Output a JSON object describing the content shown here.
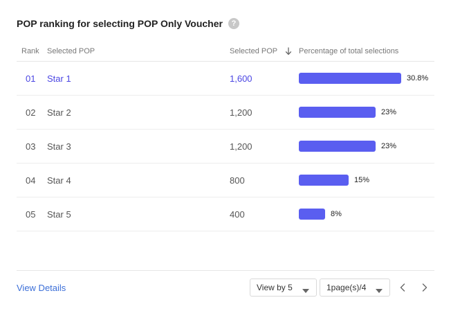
{
  "header": {
    "title": "POP ranking for selecting POP Only Voucher",
    "help_glyph": "?"
  },
  "table": {
    "columns": {
      "rank": "Rank",
      "pop": "Selected POP",
      "selected": "Selected POP",
      "percentage": "Percentage of total selections"
    },
    "sort_icon": "arrow-down-icon",
    "rows": [
      {
        "rank": "01",
        "name": "Star 1",
        "selected": "1,600",
        "pct_label": "30.8%",
        "pct": 30.8,
        "highlight": true
      },
      {
        "rank": "02",
        "name": "Star 2",
        "selected": "1,200",
        "pct_label": "23%",
        "pct": 23,
        "highlight": false
      },
      {
        "rank": "03",
        "name": "Star 3",
        "selected": "1,200",
        "pct_label": "23%",
        "pct": 23,
        "highlight": false
      },
      {
        "rank": "04",
        "name": "Star 4",
        "selected": "800",
        "pct_label": "15%",
        "pct": 15,
        "highlight": false
      },
      {
        "rank": "05",
        "name": "Star 5",
        "selected": "400",
        "pct_label": "8%",
        "pct": 8,
        "highlight": false
      }
    ]
  },
  "footer": {
    "view_details": "View Details",
    "view_by": "View by 5",
    "pages": "1page(s)/4"
  },
  "colors": {
    "accent": "#4a45e3",
    "bar": "#5a5ef0",
    "link": "#3c6fd8"
  }
}
